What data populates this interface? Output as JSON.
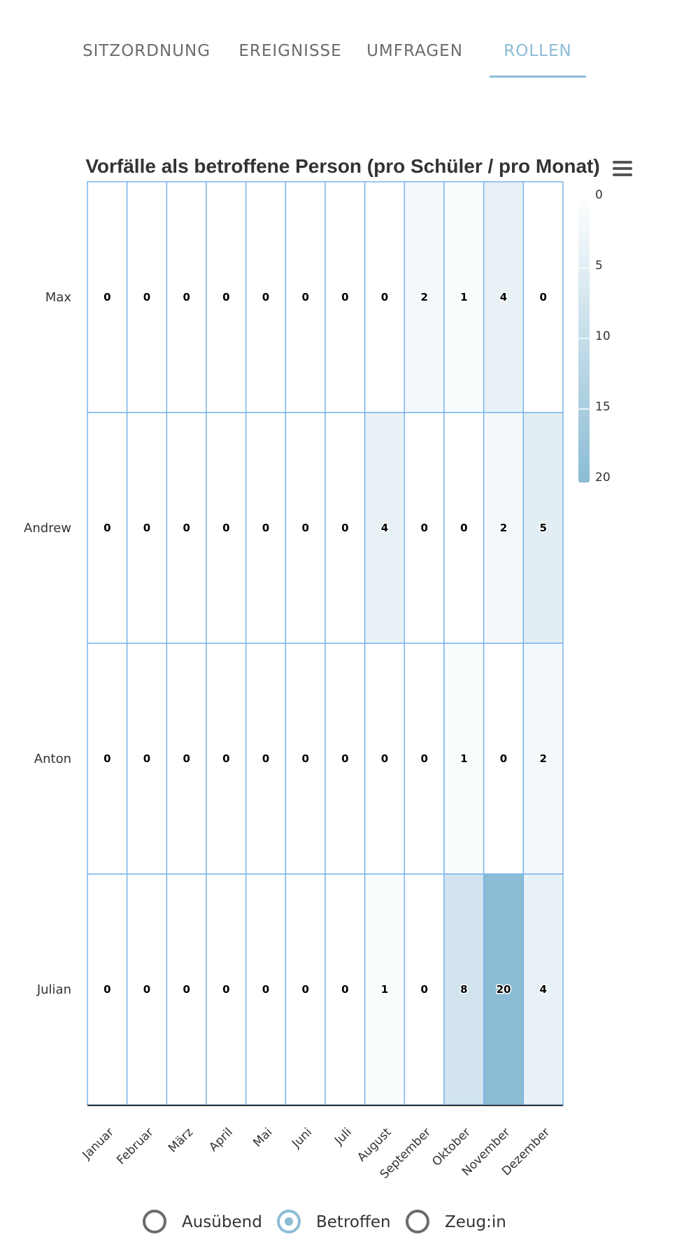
{
  "tabs": [
    {
      "label": "SITZORDNUNG",
      "active": false
    },
    {
      "label": "EREIGNISSE",
      "active": false
    },
    {
      "label": "UMFRAGEN",
      "active": false
    },
    {
      "label": "ROLLEN",
      "active": true
    }
  ],
  "chart_data": {
    "type": "heatmap",
    "title": "Vorfälle als betroffene Person (pro Schüler / pro Monat)",
    "x": [
      "Januar",
      "Februar",
      "März",
      "April",
      "Mai",
      "Juni",
      "Juli",
      "August",
      "September",
      "Oktober",
      "November",
      "Dezember"
    ],
    "y": [
      "Max",
      "Andrew",
      "Anton",
      "Julian"
    ],
    "values": [
      [
        0,
        0,
        0,
        0,
        0,
        0,
        0,
        0,
        2,
        1,
        4,
        0
      ],
      [
        0,
        0,
        0,
        0,
        0,
        0,
        0,
        4,
        0,
        0,
        2,
        5
      ],
      [
        0,
        0,
        0,
        0,
        0,
        0,
        0,
        0,
        0,
        1,
        0,
        2
      ],
      [
        0,
        0,
        0,
        0,
        0,
        0,
        0,
        1,
        0,
        8,
        20,
        4
      ]
    ],
    "color_axis": {
      "min": 0,
      "max": 20,
      "ticks": [
        0,
        5,
        10,
        15,
        20
      ],
      "min_color": "#ffffff",
      "max_color": "#8cbcd4"
    },
    "cell_border_color": "#7cb5ec",
    "legend": "right",
    "data_labels": true
  },
  "radio_options": [
    {
      "label": "Ausübend",
      "checked": false
    },
    {
      "label": "Betroffen",
      "checked": true
    },
    {
      "label": "Zeug:in",
      "checked": false
    }
  ]
}
